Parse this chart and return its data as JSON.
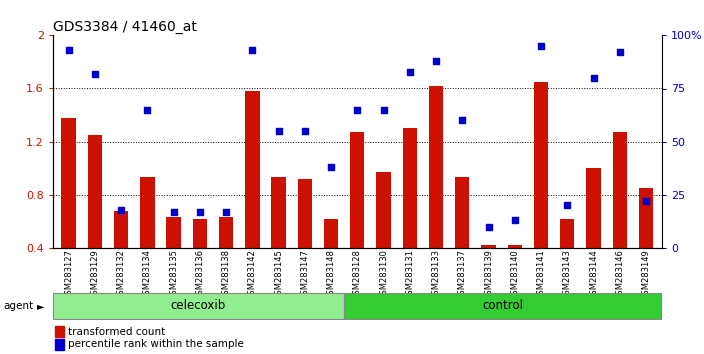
{
  "title": "GDS3384 / 41460_at",
  "categories": [
    "GSM283127",
    "GSM283129",
    "GSM283132",
    "GSM283134",
    "GSM283135",
    "GSM283136",
    "GSM283138",
    "GSM283142",
    "GSM283145",
    "GSM283147",
    "GSM283148",
    "GSM283128",
    "GSM283130",
    "GSM283131",
    "GSM283133",
    "GSM283137",
    "GSM283139",
    "GSM283140",
    "GSM283141",
    "GSM283143",
    "GSM283144",
    "GSM283146",
    "GSM283149"
  ],
  "bar_values": [
    1.38,
    1.25,
    0.68,
    0.93,
    0.63,
    0.62,
    0.63,
    1.58,
    0.93,
    0.92,
    0.62,
    1.27,
    0.97,
    1.3,
    1.62,
    0.93,
    0.42,
    0.42,
    1.65,
    0.62,
    1.0,
    1.27,
    0.85
  ],
  "percentile_values": [
    93,
    82,
    18,
    65,
    17,
    17,
    17,
    93,
    55,
    55,
    38,
    65,
    65,
    83,
    88,
    60,
    10,
    13,
    95,
    20,
    80,
    92,
    22
  ],
  "celecoxib_count": 11,
  "control_count": 12,
  "bar_color": "#cc1100",
  "dot_color": "#0000cc",
  "background_color": "#ffffff",
  "group_color_celecoxib": "#90ee90",
  "group_color_control": "#33cc33",
  "group_border_color": "#888888",
  "xticklabel_bg": "#cccccc",
  "ylim_left": [
    0.4,
    2.0
  ],
  "ylim_right": [
    0,
    100
  ],
  "yticks_left": [
    0.4,
    0.8,
    1.2,
    1.6,
    2.0
  ],
  "yticks_right": [
    0,
    25,
    50,
    75,
    100
  ],
  "yticklabels_left": [
    "0.4",
    "0.8",
    "1.2",
    "1.6",
    "2"
  ],
  "yticklabels_right": [
    "0",
    "25",
    "50",
    "75",
    "100%"
  ],
  "grid_lines": [
    0.8,
    1.2,
    1.6
  ],
  "legend_transformed": "transformed count",
  "legend_percentile": "percentile rank within the sample",
  "agent_label": "agent",
  "celecoxib_label": "celecoxib",
  "control_label": "control"
}
